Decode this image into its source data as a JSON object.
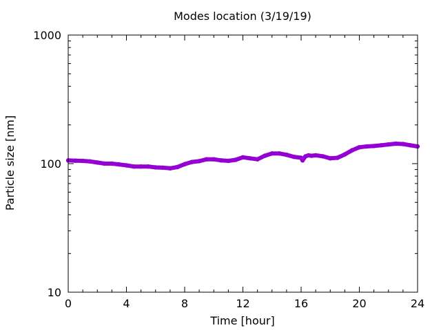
{
  "chart_data": {
    "type": "line",
    "title": "Modes location (3/19/19)",
    "xlabel": "Time [hour]",
    "ylabel": "Particle size [nm]",
    "xlim": [
      0,
      24
    ],
    "ylim": [
      10,
      1000
    ],
    "y_scale": "log",
    "x_ticks": [
      0,
      4,
      8,
      12,
      16,
      20,
      24
    ],
    "x_tick_labels": [
      "0",
      "4",
      "8",
      "12",
      "16",
      "20",
      "24"
    ],
    "y_ticks": [
      10,
      100,
      1000
    ],
    "y_tick_labels": [
      "10",
      "100",
      "1000"
    ],
    "grid": false,
    "legend": "none",
    "series_color": "#9400D3",
    "series": [
      {
        "x": [
          0,
          0.5,
          1,
          1.5,
          2,
          2.5,
          3,
          3.5,
          4,
          4.5,
          5,
          5.5,
          6,
          6.5,
          7,
          7.5,
          8,
          8.5,
          9,
          9.5,
          10,
          10.5,
          11,
          11.5,
          12,
          12.5,
          13,
          13.5,
          14,
          14.5,
          15,
          15.5,
          16,
          16.1,
          16.3,
          16.5,
          16.7,
          17,
          17.5,
          18,
          18.5,
          19,
          19.5,
          20,
          20.5,
          21,
          21.5,
          22,
          22.5,
          23,
          23.5,
          24
        ],
        "values": [
          106,
          105.5,
          105,
          104,
          102,
          100,
          100,
          98.5,
          97,
          95,
          95,
          95,
          93.5,
          93,
          92,
          94,
          99,
          103,
          104.5,
          108,
          108,
          106,
          105,
          107,
          112,
          110,
          108,
          115,
          120,
          120,
          117,
          113,
          111,
          106,
          114,
          116,
          115,
          116,
          114,
          110,
          111,
          118,
          127,
          134,
          136,
          137,
          139,
          141,
          143,
          142,
          139,
          136
        ]
      }
    ]
  }
}
